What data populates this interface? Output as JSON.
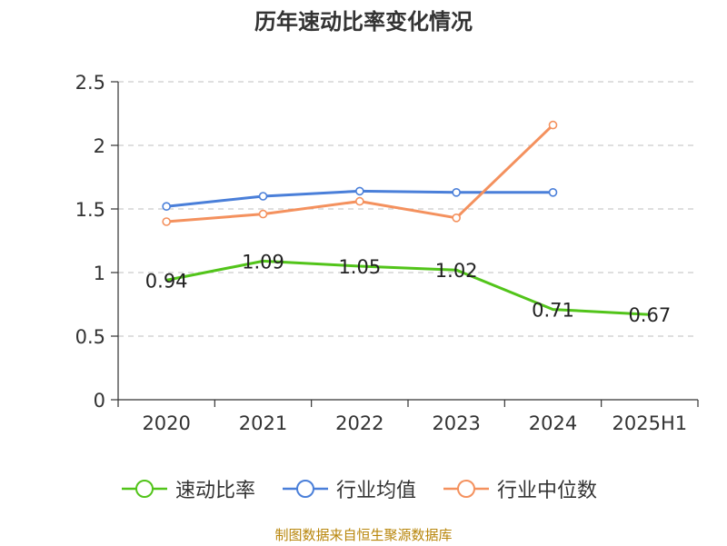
{
  "title": "历年速动比率变化情况",
  "source": "制图数据来自恒生聚源数据库",
  "chart_data": {
    "type": "line",
    "title": "历年速动比率变化情况",
    "categories": [
      "2020",
      "2021",
      "2022",
      "2023",
      "2024",
      "2025H1"
    ],
    "ylim": [
      0,
      2.5
    ],
    "yticks": [
      0,
      0.5,
      1,
      1.5,
      2,
      2.5
    ],
    "ytick_labels": [
      "0",
      "0.5",
      "1",
      "1.5",
      "2",
      "2.5"
    ],
    "grid": true,
    "legend_position": "bottom",
    "series": [
      {
        "name": "速动比率",
        "color": "#52c41a",
        "values": [
          0.94,
          1.09,
          1.05,
          1.02,
          0.71,
          0.67
        ],
        "labels": [
          "0.94",
          "1.09",
          "1.05",
          "1.02",
          "0.71",
          "0.67"
        ],
        "show_markers": false
      },
      {
        "name": "行业均值",
        "color": "#4a7fd9",
        "values": [
          1.52,
          1.6,
          1.64,
          1.63,
          1.63,
          null
        ],
        "show_markers": true
      },
      {
        "name": "行业中位数",
        "color": "#f4915e",
        "values": [
          1.4,
          1.46,
          1.56,
          1.43,
          2.16,
          null
        ],
        "show_markers": true
      }
    ]
  }
}
